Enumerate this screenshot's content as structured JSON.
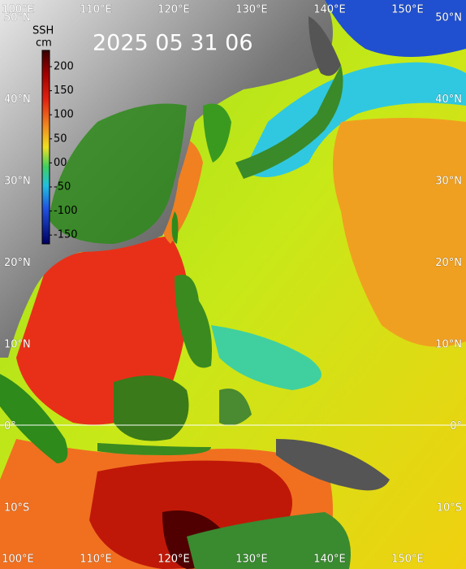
{
  "title": "2025 05 31 06",
  "colorbar": {
    "title": "SSH",
    "unit": "cm",
    "ticks": [
      "200",
      "150",
      "100",
      "50",
      "00",
      "-50",
      "-100",
      "-150"
    ]
  },
  "lon_labels": [
    "100°E",
    "110°E",
    "120°E",
    "130°E",
    "140°E",
    "150°E"
  ],
  "lat_labels": [
    "50°N",
    "40°N",
    "30°N",
    "20°N",
    "10°N",
    "0°",
    "10°S"
  ]
}
